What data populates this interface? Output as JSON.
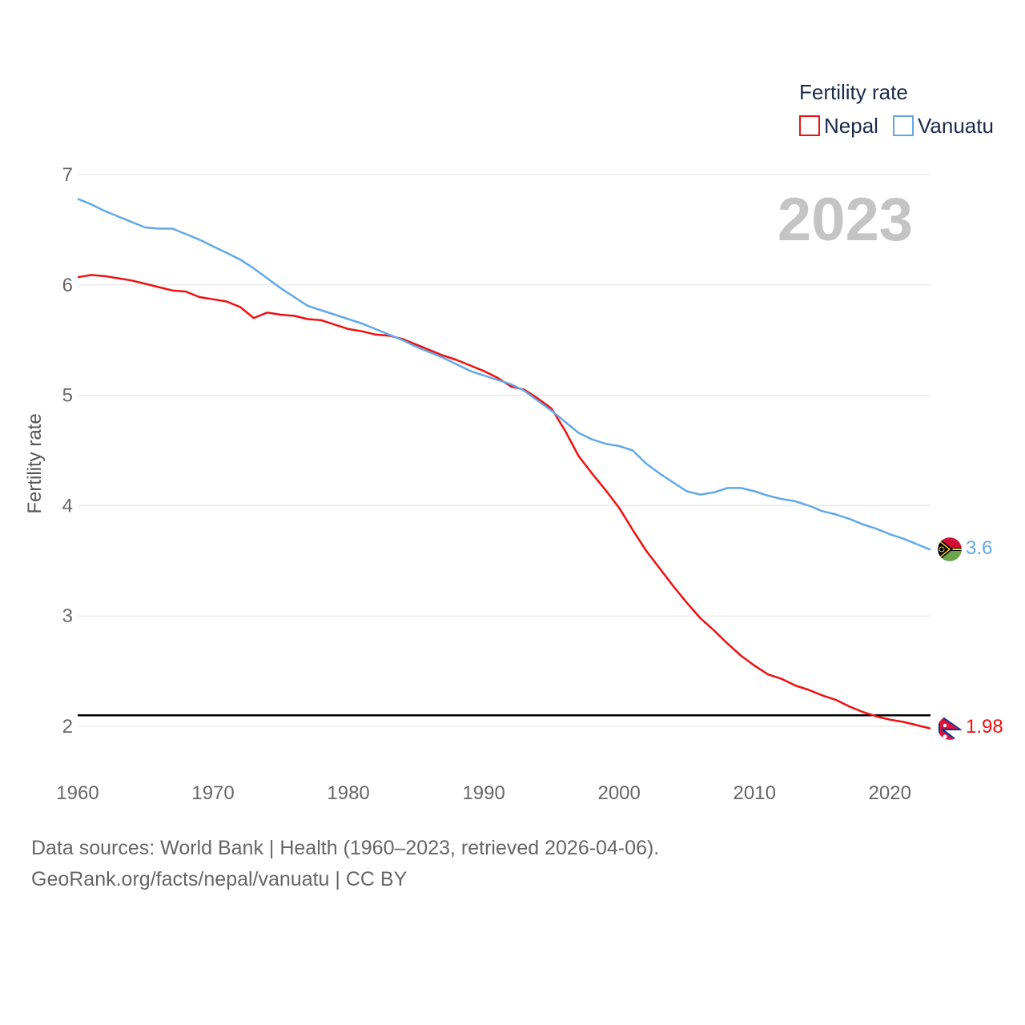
{
  "chart_data": {
    "type": "line",
    "title": "Fertility rate",
    "ylabel": "Fertility rate",
    "xlabel": "",
    "ylim": [
      1.7,
      7.05
    ],
    "xlim": [
      1960,
      2023
    ],
    "x_ticks": [
      "1960",
      "1970",
      "1980",
      "1990",
      "2000",
      "2010",
      "2020"
    ],
    "y_ticks": [
      "2",
      "3",
      "4",
      "5",
      "6",
      "7"
    ],
    "year_label": "2023",
    "reference_line": 2.1,
    "x": [
      1960,
      1961,
      1962,
      1963,
      1964,
      1965,
      1966,
      1967,
      1968,
      1969,
      1970,
      1971,
      1972,
      1973,
      1974,
      1975,
      1976,
      1977,
      1978,
      1979,
      1980,
      1981,
      1982,
      1983,
      1984,
      1985,
      1986,
      1987,
      1988,
      1989,
      1990,
      1991,
      1992,
      1993,
      1994,
      1995,
      1996,
      1997,
      1998,
      1999,
      2000,
      2001,
      2002,
      2003,
      2004,
      2005,
      2006,
      2007,
      2008,
      2009,
      2010,
      2011,
      2012,
      2013,
      2014,
      2015,
      2016,
      2017,
      2018,
      2019,
      2020,
      2021,
      2022,
      2023
    ],
    "series": [
      {
        "name": "Nepal",
        "color": "#ee1111",
        "end_label": "1.98",
        "flag": "nepal-flag-icon",
        "values": [
          6.07,
          6.09,
          6.08,
          6.06,
          6.04,
          6.01,
          5.98,
          5.95,
          5.94,
          5.89,
          5.87,
          5.85,
          5.8,
          5.7,
          5.75,
          5.73,
          5.72,
          5.69,
          5.68,
          5.64,
          5.6,
          5.58,
          5.55,
          5.54,
          5.51,
          5.46,
          5.41,
          5.36,
          5.32,
          5.27,
          5.22,
          5.16,
          5.08,
          5.05,
          4.97,
          4.88,
          4.68,
          4.45,
          4.29,
          4.14,
          3.98,
          3.78,
          3.59,
          3.43,
          3.27,
          3.12,
          2.98,
          2.87,
          2.75,
          2.64,
          2.55,
          2.47,
          2.43,
          2.37,
          2.33,
          2.28,
          2.24,
          2.18,
          2.13,
          2.09,
          2.06,
          2.04,
          2.01,
          1.98
        ]
      },
      {
        "name": "Vanuatu",
        "color": "#62a8e8",
        "end_label": "3.6",
        "flag": "vanuatu-flag-icon",
        "values": [
          6.78,
          6.73,
          6.67,
          6.62,
          6.57,
          6.52,
          6.51,
          6.51,
          6.46,
          6.41,
          6.35,
          6.29,
          6.23,
          6.15,
          6.06,
          5.97,
          5.89,
          5.81,
          5.77,
          5.73,
          5.69,
          5.65,
          5.6,
          5.55,
          5.5,
          5.44,
          5.39,
          5.34,
          5.28,
          5.22,
          5.18,
          5.14,
          5.1,
          5.04,
          4.95,
          4.86,
          4.76,
          4.66,
          4.6,
          4.56,
          4.54,
          4.5,
          4.38,
          4.29,
          4.21,
          4.13,
          4.1,
          4.12,
          4.16,
          4.16,
          4.13,
          4.09,
          4.06,
          4.04,
          4.0,
          3.95,
          3.92,
          3.88,
          3.83,
          3.79,
          3.74,
          3.7,
          3.65,
          3.6
        ]
      }
    ]
  },
  "source": {
    "line1": "Data sources: World Bank | Health (1960–2023, retrieved 2026-04-06).",
    "line2": "GeoRank.org/facts/nepal/vanuatu | CC BY"
  }
}
